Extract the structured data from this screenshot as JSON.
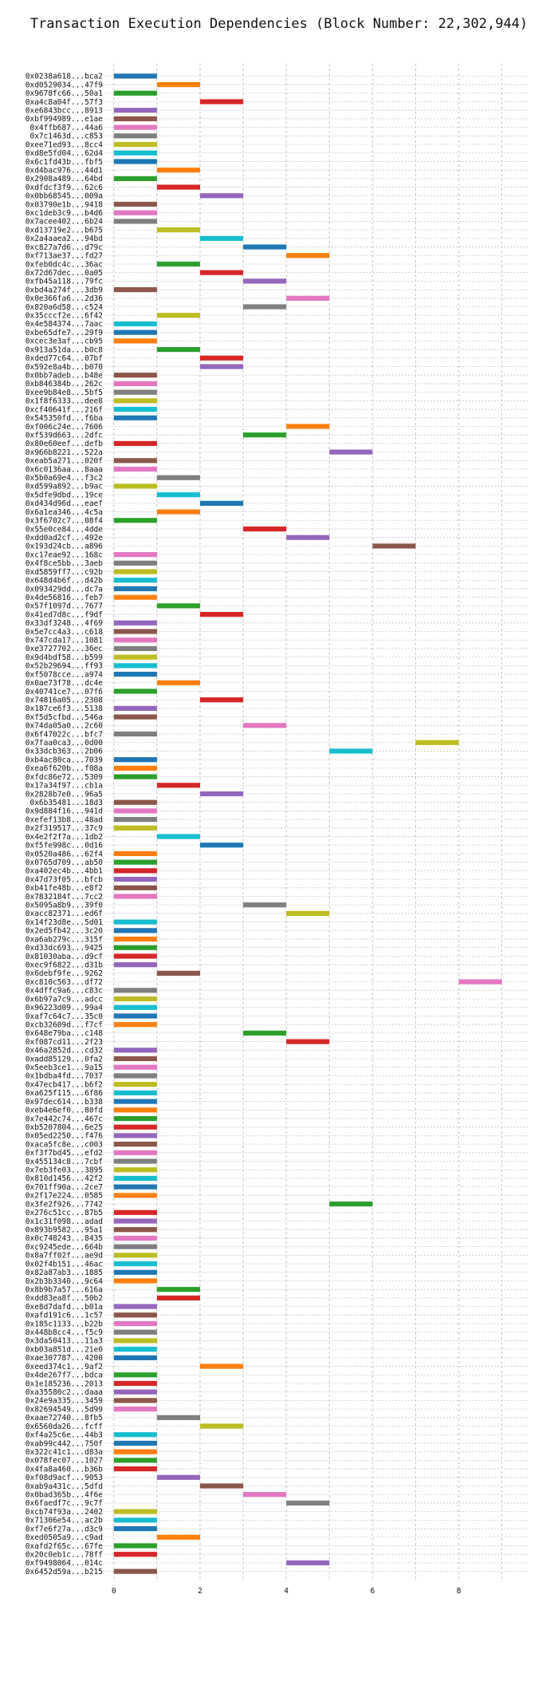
{
  "chart_data": {
    "type": "bar",
    "orientation": "horizontal",
    "title": "Transaction Execution Dependencies (Block Number: 22,302,944)",
    "xlabel": "",
    "ylabel": "",
    "xlim": [
      -0.2,
      9.6
    ],
    "xticks": [
      0,
      2,
      4,
      6,
      8
    ],
    "grid": true,
    "palette": [
      "#1f77b4",
      "#ff7f0e",
      "#2ca02c",
      "#d62728",
      "#9467bd",
      "#8c564b",
      "#e377c2",
      "#7f7f7f",
      "#bcbd22",
      "#17becf"
    ],
    "transactions": [
      {
        "tx": "0x0238a618...bca2",
        "start": 0
      },
      {
        "tx": "0xd0529034...47f9",
        "start": 1
      },
      {
        "tx": "0x9678fc66...50a1",
        "start": 0
      },
      {
        "tx": "0xa4c8a04f...57f3",
        "start": 2
      },
      {
        "tx": "0xe6843bcc...8913",
        "start": 0
      },
      {
        "tx": "0xbf994989...e1ae",
        "start": 0
      },
      {
        "tx": "0x4ffb687...44a6",
        "start": 0
      },
      {
        "tx": "0x7c1463d...c853",
        "start": 0
      },
      {
        "tx": "0xee71ed93...8cc4",
        "start": 0
      },
      {
        "tx": "0xd8e5fd04...62d4",
        "start": 0
      },
      {
        "tx": "0x6c1fd43b...fbf5",
        "start": 0
      },
      {
        "tx": "0xd4bac976...44d1",
        "start": 1
      },
      {
        "tx": "0x2908a489...64bd",
        "start": 0
      },
      {
        "tx": "0xdfdcf3f9...62c6",
        "start": 1
      },
      {
        "tx": "0x0bb68545...009a",
        "start": 2
      },
      {
        "tx": "0x03790e1b...9418",
        "start": 0
      },
      {
        "tx": "0xc1deb3c9...b4d6",
        "start": 0
      },
      {
        "tx": "0x7acee402...6b24",
        "start": 0
      },
      {
        "tx": "0xd13719e2...b675",
        "start": 1
      },
      {
        "tx": "0x2a4aaea2...94bd",
        "start": 2
      },
      {
        "tx": "0xc827a7d6...d79c",
        "start": 3
      },
      {
        "tx": "0xf713ae37...fd27",
        "start": 4
      },
      {
        "tx": "0xfeb0dc4c...36ac",
        "start": 1
      },
      {
        "tx": "0x72d67dec...0a05",
        "start": 2
      },
      {
        "tx": "0xfb45a118...79fc",
        "start": 3
      },
      {
        "tx": "0xbd4a274f...3db9",
        "start": 0
      },
      {
        "tx": "0x0e366fa6...2d36",
        "start": 4
      },
      {
        "tx": "0x820a6d58...c524",
        "start": 3
      },
      {
        "tx": "0x35cccf2e...6f42",
        "start": 1
      },
      {
        "tx": "0x4e584374...7aac",
        "start": 0
      },
      {
        "tx": "0xbe65dfe7...29f9",
        "start": 0
      },
      {
        "tx": "0xcec3e3af...cb95",
        "start": 0
      },
      {
        "tx": "0x913a51da...b0c8",
        "start": 1
      },
      {
        "tx": "0xded77c64...07bf",
        "start": 2
      },
      {
        "tx": "0x592e8a4b...b070",
        "start": 2
      },
      {
        "tx": "0x0bb7adeb...b48e",
        "start": 0
      },
      {
        "tx": "0xb846384b...262c",
        "start": 0
      },
      {
        "tx": "0xee9b84e8...5bf5",
        "start": 0
      },
      {
        "tx": "0x1f8f6333...dee8",
        "start": 0
      },
      {
        "tx": "0xcf40641f...216f",
        "start": 0
      },
      {
        "tx": "0x545350fd...f6ba",
        "start": 0
      },
      {
        "tx": "0xf006c24e...7606",
        "start": 4
      },
      {
        "tx": "0xf539d663...2dfc",
        "start": 3
      },
      {
        "tx": "0x80e60eef...defb",
        "start": 0
      },
      {
        "tx": "0x966b8221...522a",
        "start": 5
      },
      {
        "tx": "0xeab5a271...020f",
        "start": 0
      },
      {
        "tx": "0x6c0136aa...8aaa",
        "start": 0
      },
      {
        "tx": "0x5b0a69e4...f3c2",
        "start": 1
      },
      {
        "tx": "0xd599a892...b9ac",
        "start": 0
      },
      {
        "tx": "0x5dfe9dbd...19ce",
        "start": 1
      },
      {
        "tx": "0xd434d96d...eaef",
        "start": 2
      },
      {
        "tx": "0x6a1ea346...4c5a",
        "start": 1
      },
      {
        "tx": "0x3f6702c7...08f4",
        "start": 0
      },
      {
        "tx": "0x55e0ce84...4dde",
        "start": 3
      },
      {
        "tx": "0xdd0ad2cf...492e",
        "start": 4
      },
      {
        "tx": "0x193d24cb...a896",
        "start": 6
      },
      {
        "tx": "0xc17eae92...168c",
        "start": 0
      },
      {
        "tx": "0x4f8ce5bb...3aeb",
        "start": 0
      },
      {
        "tx": "0xd5859ff7...c92b",
        "start": 0
      },
      {
        "tx": "0x648d4b6f...d42b",
        "start": 0
      },
      {
        "tx": "0x093429dd...dc7a",
        "start": 0
      },
      {
        "tx": "0x4de56816...feb7",
        "start": 0
      },
      {
        "tx": "0x57f1097d...7677",
        "start": 1
      },
      {
        "tx": "0x41ed7d8c...f9df",
        "start": 2
      },
      {
        "tx": "0x33df3248...4f69",
        "start": 0
      },
      {
        "tx": "0x5e7cc4a3...c618",
        "start": 0
      },
      {
        "tx": "0x747cda17...1081",
        "start": 0
      },
      {
        "tx": "0xe3727702...36ec",
        "start": 0
      },
      {
        "tx": "0x9d4bdf58...b599",
        "start": 0
      },
      {
        "tx": "0x52b29694...ff93",
        "start": 0
      },
      {
        "tx": "0xf5078cce...a974",
        "start": 0
      },
      {
        "tx": "0x0ae73f78...dc4e",
        "start": 1
      },
      {
        "tx": "0x40741ce7...07f6",
        "start": 0
      },
      {
        "tx": "0x74816a05...2308",
        "start": 2
      },
      {
        "tx": "0x187ce6f3...5138",
        "start": 0
      },
      {
        "tx": "0xf5d5cfbd...546a",
        "start": 0
      },
      {
        "tx": "0x74da05a0...2c60",
        "start": 3
      },
      {
        "tx": "0x6f47022c...bfc7",
        "start": 0
      },
      {
        "tx": "0x7faa0ca3...0d00",
        "start": 7
      },
      {
        "tx": "0x33dcb363...2b06",
        "start": 5
      },
      {
        "tx": "0xb4ac80ca...7039",
        "start": 0
      },
      {
        "tx": "0xea6f620b...f08a",
        "start": 0
      },
      {
        "tx": "0xfdc86e72...5309",
        "start": 0
      },
      {
        "tx": "0x17a34f97...cb1a",
        "start": 1
      },
      {
        "tx": "0x2828b7e0...96a5",
        "start": 2
      },
      {
        "tx": "0x6b35481...18d3",
        "start": 0
      },
      {
        "tx": "0x9d884f16...941d",
        "start": 0
      },
      {
        "tx": "0xefef13b8...48ad",
        "start": 0
      },
      {
        "tx": "0x2f319517...37c9",
        "start": 0
      },
      {
        "tx": "0x4e2f2f7a...1db2",
        "start": 1
      },
      {
        "tx": "0xf5fe998c...0d16",
        "start": 2
      },
      {
        "tx": "0x0520a486...62f4",
        "start": 0
      },
      {
        "tx": "0x0765d709...ab50",
        "start": 0
      },
      {
        "tx": "0xa402ec4b...4bb1",
        "start": 0
      },
      {
        "tx": "0x47d73f05...bfcb",
        "start": 0
      },
      {
        "tx": "0xb41fe48b...e8f2",
        "start": 0
      },
      {
        "tx": "0x7832184f...7cc2",
        "start": 0
      },
      {
        "tx": "0x5095a8b9...39f0",
        "start": 3
      },
      {
        "tx": "0xacc82371...ed6f",
        "start": 4
      },
      {
        "tx": "0x14f23d8e...5d01",
        "start": 0
      },
      {
        "tx": "0x2ed5fb42...3c20",
        "start": 0
      },
      {
        "tx": "0xa6ab279c...315f",
        "start": 0
      },
      {
        "tx": "0xd33dc693...9425",
        "start": 0
      },
      {
        "tx": "0x81030aba...d9cf",
        "start": 0
      },
      {
        "tx": "0xec9f6822...d31b",
        "start": 0
      },
      {
        "tx": "0x6debf9fe...9262",
        "start": 1
      },
      {
        "tx": "0xc810c563...df72",
        "start": 8
      },
      {
        "tx": "0x4dffc9a6...c83c",
        "start": 0
      },
      {
        "tx": "0x6b97a7c9...adcc",
        "start": 0
      },
      {
        "tx": "0x96223d09...99a4",
        "start": 0
      },
      {
        "tx": "0xaf7c64c7...35c0",
        "start": 0
      },
      {
        "tx": "0xcb32609d...f7cf",
        "start": 0
      },
      {
        "tx": "0x648e79ba...c148",
        "start": 3
      },
      {
        "tx": "0xf087cd11...2f23",
        "start": 4
      },
      {
        "tx": "0x46a2852d...cd32",
        "start": 0
      },
      {
        "tx": "0xadd85129...0fa2",
        "start": 0
      },
      {
        "tx": "0x5eeb3ce1...9a15",
        "start": 0
      },
      {
        "tx": "0x1bdba4fd...7037",
        "start": 0
      },
      {
        "tx": "0x47ecb417...b6f2",
        "start": 0
      },
      {
        "tx": "0xa625f115...6f86",
        "start": 0
      },
      {
        "tx": "0x97dec614...b338",
        "start": 0
      },
      {
        "tx": "0xeb4e6ef0...80fd",
        "start": 0
      },
      {
        "tx": "0x7e442c74...467c",
        "start": 0
      },
      {
        "tx": "0xb5207804...6e25",
        "start": 0
      },
      {
        "tx": "0x05ed2250...f476",
        "start": 0
      },
      {
        "tx": "0xaca5fc8e...c003",
        "start": 0
      },
      {
        "tx": "0xf3f7bd45...efd2",
        "start": 0
      },
      {
        "tx": "0x455134c8...7cbf",
        "start": 0
      },
      {
        "tx": "0x7eb3fe03...3895",
        "start": 0
      },
      {
        "tx": "0x810d1456...42f2",
        "start": 0
      },
      {
        "tx": "0x701ff90a...2ce7",
        "start": 0
      },
      {
        "tx": "0x2f17e224...0585",
        "start": 0
      },
      {
        "tx": "0x3fe2f926...7742",
        "start": 5
      },
      {
        "tx": "0x276c51cc...87b5",
        "start": 0
      },
      {
        "tx": "0x1c31f098...adad",
        "start": 0
      },
      {
        "tx": "0x893b9582...95a1",
        "start": 0
      },
      {
        "tx": "0x0c748243...8435",
        "start": 0
      },
      {
        "tx": "0xc9245ede...664b",
        "start": 0
      },
      {
        "tx": "0x8a7ff02f...ae9d",
        "start": 0
      },
      {
        "tx": "0x02f4b151...46ac",
        "start": 0
      },
      {
        "tx": "0x82a87ab3...1885",
        "start": 0
      },
      {
        "tx": "0x2b3b3340...9c64",
        "start": 0
      },
      {
        "tx": "0x8b9b7a57...616a",
        "start": 1
      },
      {
        "tx": "0xdd83ea8f...50b2",
        "start": 1
      },
      {
        "tx": "0xe8d7dafd...b01a",
        "start": 0
      },
      {
        "tx": "0xafd191c6...1c57",
        "start": 0
      },
      {
        "tx": "0x185c1133...b22b",
        "start": 0
      },
      {
        "tx": "0x448b8cc4...f5c9",
        "start": 0
      },
      {
        "tx": "0x3da50413...11a3",
        "start": 0
      },
      {
        "tx": "0xb03a851d...21e0",
        "start": 0
      },
      {
        "tx": "0xae307787...4200",
        "start": 0
      },
      {
        "tx": "0xeed374c1...9af2",
        "start": 2
      },
      {
        "tx": "0x4de267f7...bdca",
        "start": 0
      },
      {
        "tx": "0x1e185236...2013",
        "start": 0
      },
      {
        "tx": "0xa35580c2...daaa",
        "start": 0
      },
      {
        "tx": "0x24e9a335...3459",
        "start": 0
      },
      {
        "tx": "0x82694549...5d99",
        "start": 0
      },
      {
        "tx": "0xaae72740...8fb5",
        "start": 1
      },
      {
        "tx": "0x6560da26...fcff",
        "start": 2
      },
      {
        "tx": "0xf4a25c6e...44b3",
        "start": 0
      },
      {
        "tx": "0xab99c442...750f",
        "start": 0
      },
      {
        "tx": "0x322c41c1...d83a",
        "start": 0
      },
      {
        "tx": "0x078fec07...1027",
        "start": 0
      },
      {
        "tx": "0x4fa8a460...b36b",
        "start": 0
      },
      {
        "tx": "0xf08d9acf...9053",
        "start": 1
      },
      {
        "tx": "0xab9a431c...5dfd",
        "start": 2
      },
      {
        "tx": "0x0bad365b...4f6e",
        "start": 3
      },
      {
        "tx": "0x6faedf7c...9c7f",
        "start": 4
      },
      {
        "tx": "0xcb74f93a...2402",
        "start": 0
      },
      {
        "tx": "0x71306e54...ac2b",
        "start": 0
      },
      {
        "tx": "0xf7e6f27a...d3c9",
        "start": 0
      },
      {
        "tx": "0xed0505a9...c9ad",
        "start": 1
      },
      {
        "tx": "0xafd2f65c...67fe",
        "start": 0
      },
      {
        "tx": "0x20c0eb1c...78ff",
        "start": 0
      },
      {
        "tx": "0xf9498064...014c",
        "start": 4
      },
      {
        "tx": "0x6452d59a...b215",
        "start": 0
      }
    ]
  }
}
